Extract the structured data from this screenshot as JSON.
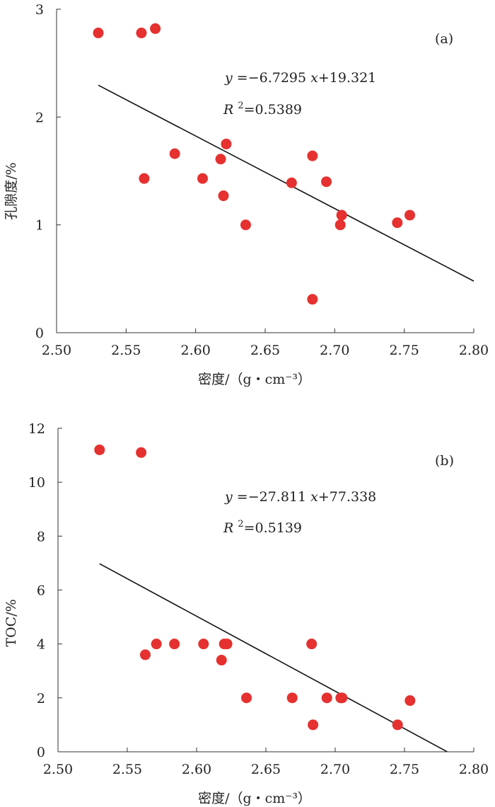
{
  "chart_data": [
    {
      "type": "scatter",
      "panel_label": "(a)",
      "xlabel": "密度/（g・cm⁻³）",
      "ylabel": "孔隙度/%",
      "xlim": [
        2.5,
        2.8
      ],
      "ylim": [
        0,
        3
      ],
      "xticks": [
        "2.50",
        "2.55",
        "2.60",
        "2.65",
        "2.70",
        "2.75",
        "2.80"
      ],
      "yticks": [
        "0",
        "1",
        "2",
        "3"
      ],
      "x": [
        2.53,
        2.561,
        2.571,
        2.563,
        2.585,
        2.605,
        2.618,
        2.62,
        2.622,
        2.636,
        2.669,
        2.684,
        2.684,
        2.694,
        2.704,
        2.705,
        2.745,
        2.754
      ],
      "y": [
        2.78,
        2.78,
        2.82,
        1.43,
        1.66,
        1.43,
        1.61,
        1.27,
        1.75,
        1.0,
        1.39,
        1.64,
        0.31,
        1.4,
        1.0,
        1.09,
        1.02,
        1.09
      ],
      "fit": {
        "slope": -6.7295,
        "intercept": 19.321,
        "x_range": [
          2.53,
          2.8
        ]
      },
      "equation": {
        "y_var": "y",
        "eq": " =−6.7295 ",
        "x_var": "x",
        "rest": "+19.321"
      },
      "r2": {
        "r_var": "R",
        "sup": "2",
        "rest": "=0.5389"
      }
    },
    {
      "type": "scatter",
      "panel_label": "(b)",
      "xlabel": "密度/（g・cm⁻³）",
      "ylabel": "TOC/%",
      "xlim": [
        2.5,
        2.8
      ],
      "ylim": [
        0,
        12
      ],
      "xticks": [
        "2.50",
        "2.55",
        "2.60",
        "2.65",
        "2.70",
        "2.75",
        "2.80"
      ],
      "yticks": [
        "0",
        "2",
        "4",
        "6",
        "8",
        "10",
        "12"
      ],
      "x": [
        2.53,
        2.56,
        2.563,
        2.571,
        2.584,
        2.605,
        2.618,
        2.62,
        2.622,
        2.636,
        2.669,
        2.683,
        2.684,
        2.694,
        2.704,
        2.705,
        2.745,
        2.754
      ],
      "y": [
        11.2,
        11.1,
        3.6,
        4.0,
        4.0,
        4.0,
        3.4,
        4.0,
        4.0,
        2.0,
        2.0,
        4.0,
        1.0,
        2.0,
        2.0,
        2.0,
        1.0,
        1.9
      ],
      "fit": {
        "slope": -27.811,
        "intercept": 77.338,
        "x_range": [
          2.53,
          2.7808
        ]
      },
      "equation": {
        "y_var": "y",
        "eq": " =−27.811 ",
        "x_var": "x",
        "rest": "+77.338"
      },
      "r2": {
        "r_var": "R",
        "sup": "2",
        "rest": "=0.5139"
      }
    }
  ]
}
